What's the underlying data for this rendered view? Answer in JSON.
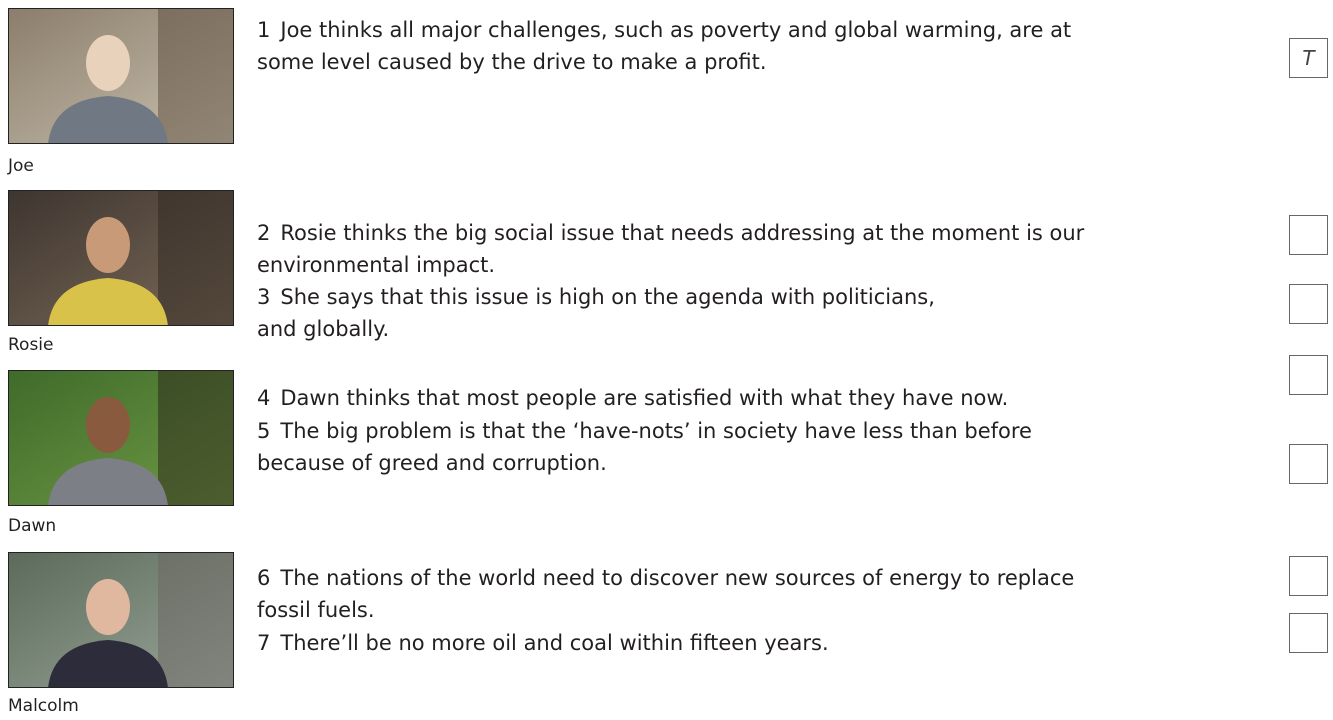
{
  "people": [
    {
      "name": "Joe",
      "statements": [
        {
          "number": 1,
          "lines": [
            "Joe thinks all major challenges, such as poverty and global warming, are at",
            "some level caused by the drive to make a profit."
          ],
          "answer": "T"
        }
      ]
    },
    {
      "name": "Rosie",
      "statements": [
        {
          "number": 2,
          "lines": [
            "Rosie thinks the big social issue that needs addressing at the moment is our",
            "environmental impact."
          ]
        },
        {
          "number": 3,
          "lines": [
            "She says that this issue is high on the agenda with politicians,",
            "and globally."
          ]
        }
      ]
    },
    {
      "name": "Dawn",
      "statements": [
        {
          "number": 4,
          "lines": [
            "Dawn thinks that most people are satisfied with what they have now."
          ]
        },
        {
          "number": 5,
          "lines": [
            "The big problem is that the ‘have-nots’ in society have less than before",
            "because of greed and corruption."
          ]
        }
      ]
    },
    {
      "name": "Malcolm",
      "statements": [
        {
          "number": 6,
          "lines": [
            "The nations of the world need to discover new sources of energy to replace",
            "fossil fuels."
          ]
        },
        {
          "number": 7,
          "lines": [
            "There’ll be no more oil and coal within fifteen years."
          ]
        }
      ]
    }
  ]
}
